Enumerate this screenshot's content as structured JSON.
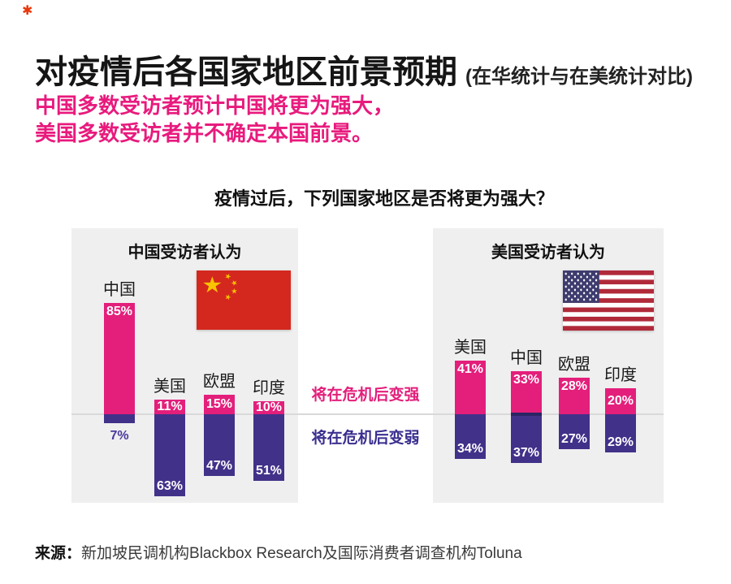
{
  "header": {
    "brand_mark": "✱",
    "title": "对疫情后各国家地区前景预期",
    "title_suffix": "(在华统计与在美统计对比)",
    "subtitle_line1": "中国多数受访者预计中国将更为强大，",
    "subtitle_line2": "美国多数受访者并不确定本国前景。"
  },
  "source": {
    "prefix": "来源：",
    "text": "新加坡民调机构Blackbox Research及国际消费者调查机构Toluna"
  },
  "colors": {
    "stronger_pink": "#e31f7b",
    "weaker_purple": "#423189",
    "subtitle_pink": "#e81a7d",
    "panel_bg": "#efefef",
    "baseline_gray": "#d9d9d9",
    "cn_flag_red": "#d4281e",
    "cn_flag_yellow": "#f8c301",
    "us_flag_red": "#b02a3a",
    "us_flag_blue": "#3e3c6e"
  },
  "chart_data": {
    "type": "bar",
    "variant": "diverging-stacked",
    "title": "疫情过后，下列国家地区是否将更为强大？",
    "unit": "%",
    "legend": {
      "up": "将在危机后变强",
      "down": "将在危机后变弱",
      "position": "center-between-panels"
    },
    "panels": [
      {
        "id": "china",
        "title": "中国受访者认为",
        "flag": "china",
        "categories": [
          "中国",
          "美国",
          "欧盟",
          "印度"
        ],
        "series": [
          {
            "name": "将在危机后变强",
            "direction": "up",
            "values": [
              85,
              11,
              15,
              10
            ]
          },
          {
            "name": "将在危机后变弱",
            "direction": "down",
            "values": [
              7,
              63,
              47,
              51
            ]
          }
        ]
      },
      {
        "id": "usa",
        "title": "美国受访者认为",
        "flag": "usa",
        "categories": [
          "美国",
          "中国",
          "欧盟",
          "印度"
        ],
        "series": [
          {
            "name": "将在危机后变强",
            "direction": "up",
            "values": [
              41,
              33,
              28,
              20
            ]
          },
          {
            "name": "将在危机后变弱",
            "direction": "down",
            "values": [
              34,
              37,
              27,
              29
            ]
          }
        ]
      }
    ]
  }
}
